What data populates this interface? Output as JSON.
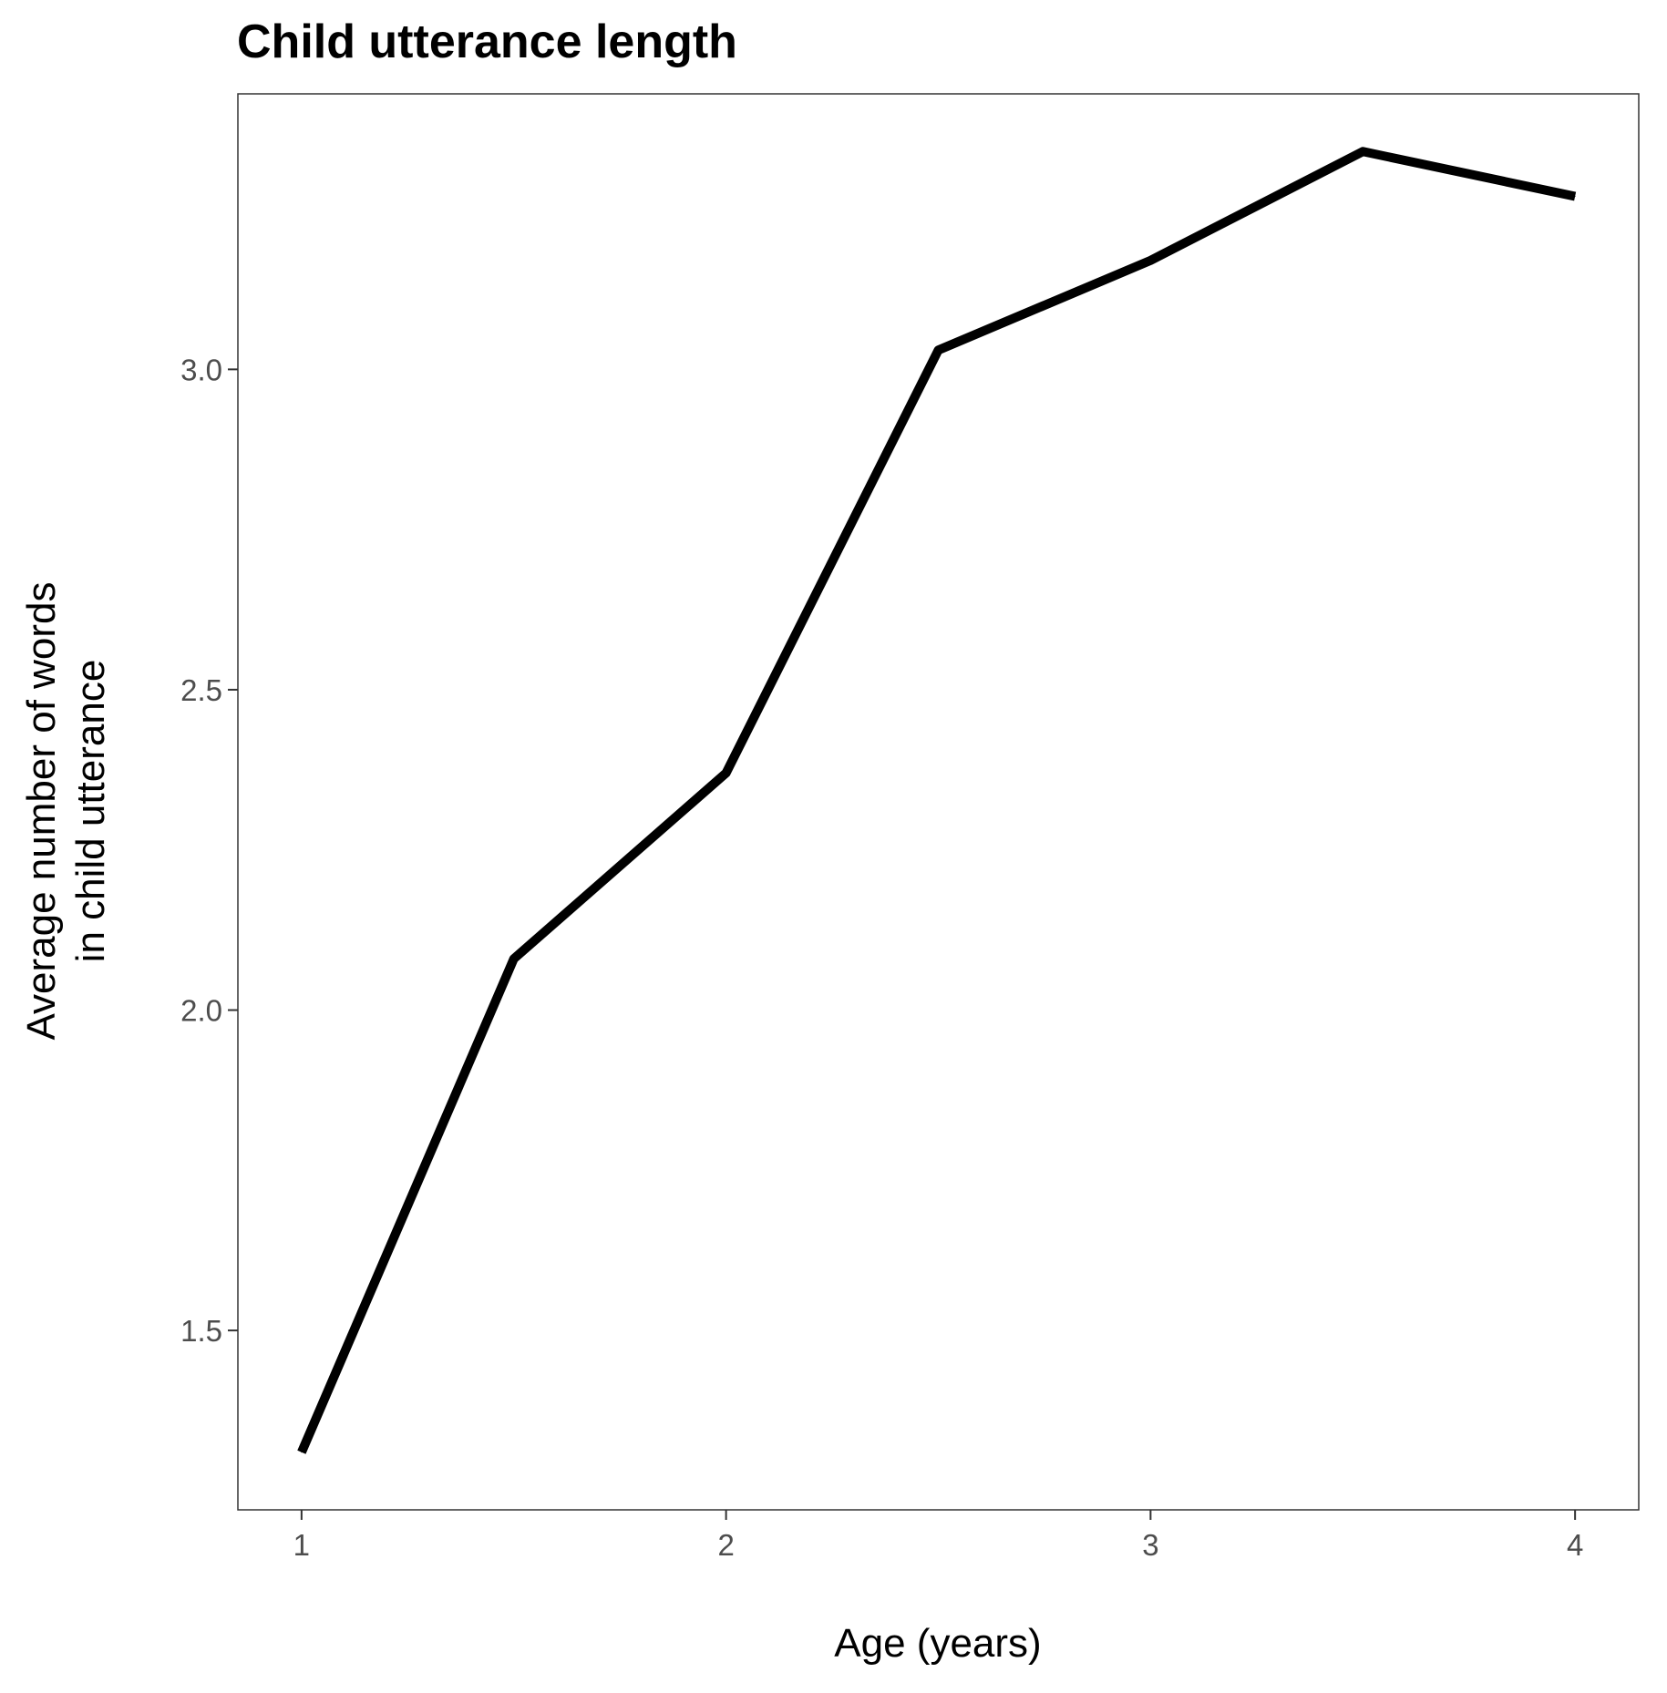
{
  "chart_data": {
    "type": "line",
    "title": "Child utterance length",
    "xlabel": "Age (years)",
    "ylabel_lines": [
      "Average number of words",
      "in child utterance"
    ],
    "xlim": [
      0.85,
      4.15
    ],
    "ylim": [
      1.22,
      3.43
    ],
    "x_ticks": [
      1,
      2,
      3,
      4
    ],
    "x_tick_labels": [
      "1",
      "2",
      "3",
      "4"
    ],
    "y_ticks": [
      1.5,
      2.0,
      2.5,
      3.0
    ],
    "y_tick_labels": [
      "1.5",
      "2.0",
      "2.5",
      "3.0"
    ],
    "grid": false,
    "series": [
      {
        "color": "#000000",
        "x": [
          1.0,
          1.5,
          2.0,
          2.5,
          3.0,
          3.5,
          4.0
        ],
        "y": [
          1.31,
          2.08,
          2.37,
          3.03,
          3.17,
          3.34,
          3.27
        ]
      }
    ]
  }
}
